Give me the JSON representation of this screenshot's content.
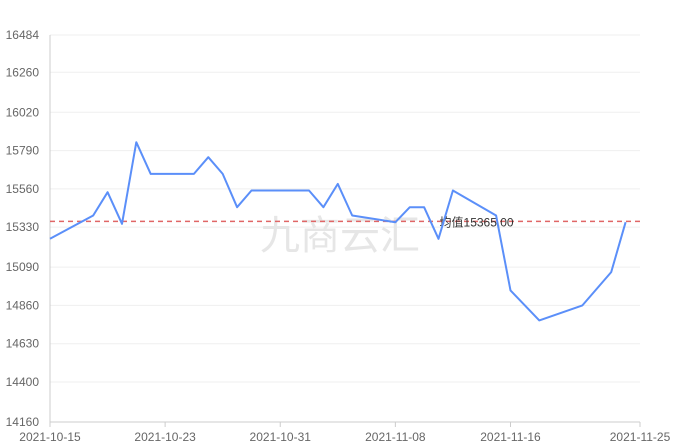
{
  "chart_data": {
    "type": "line",
    "x_start_date": "2021-10-15",
    "x_end_date": "2021-11-25",
    "x_tick_labels": [
      "2021-10-15",
      "2021-10-23",
      "2021-10-31",
      "2021-11-08",
      "2021-11-16",
      "2021-11-25"
    ],
    "y_ticks": [
      14160,
      14400,
      14630,
      14860,
      15090,
      15330,
      15560,
      15790,
      16020,
      16260,
      16484
    ],
    "ylim": [
      14160,
      16484
    ],
    "series": [
      {
        "name": "",
        "color": "#5b8ff9",
        "points": [
          [
            "2021-10-15",
            15260
          ],
          [
            "2021-10-18",
            15400
          ],
          [
            "2021-10-19",
            15540
          ],
          [
            "2021-10-20",
            15350
          ],
          [
            "2021-10-21",
            15840
          ],
          [
            "2021-10-22",
            15650
          ],
          [
            "2021-10-25",
            15650
          ],
          [
            "2021-10-26",
            15750
          ],
          [
            "2021-10-27",
            15650
          ],
          [
            "2021-10-28",
            15450
          ],
          [
            "2021-10-29",
            15550
          ],
          [
            "2021-11-02",
            15550
          ],
          [
            "2021-11-03",
            15450
          ],
          [
            "2021-11-04",
            15590
          ],
          [
            "2021-11-05",
            15400
          ],
          [
            "2021-11-08",
            15360
          ],
          [
            "2021-11-09",
            15450
          ],
          [
            "2021-11-10",
            15450
          ],
          [
            "2021-11-11",
            15260
          ],
          [
            "2021-11-12",
            15550
          ],
          [
            "2021-11-15",
            15400
          ],
          [
            "2021-11-16",
            14950
          ],
          [
            "2021-11-18",
            14770
          ],
          [
            "2021-11-21",
            14860
          ],
          [
            "2021-11-23",
            15060
          ],
          [
            "2021-11-24",
            15360
          ]
        ]
      }
    ],
    "average": {
      "value": 15365.0,
      "label": "均值15365.00",
      "color": "#e06666"
    },
    "watermark": "九商云汇",
    "grid": true,
    "legend": "none"
  }
}
